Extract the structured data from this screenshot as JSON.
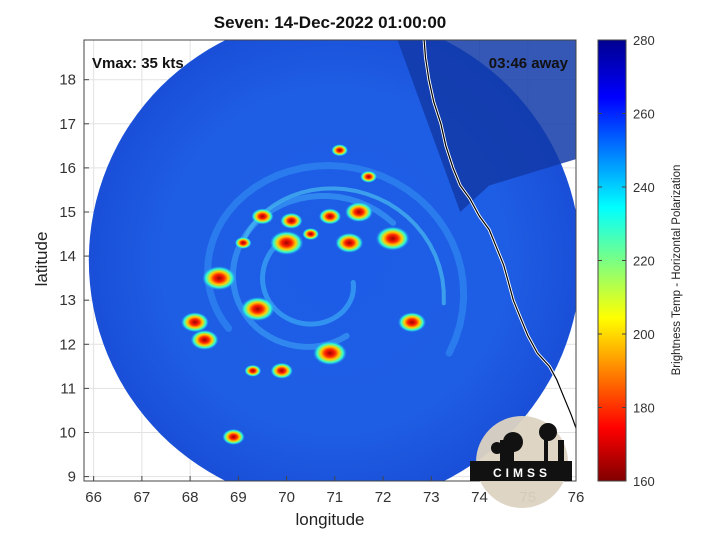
{
  "title": "Seven: 14-Dec-2022 01:00:00",
  "xlabel": "longitude",
  "ylabel": "latitude",
  "annotations": {
    "vmax": "Vmax: 35 kts",
    "time_away": "03:46 away"
  },
  "logo": {
    "text": "CIMSS"
  },
  "colorbar": {
    "label": "Brightness Temp - Horizontal Polarization",
    "range": [
      160,
      280
    ],
    "ticks": [
      "280",
      "260",
      "240",
      "220",
      "200",
      "180",
      "160"
    ],
    "colormap": "jet"
  },
  "map": {
    "xlim": [
      65.8,
      76
    ],
    "ylim": [
      8.9,
      18.9
    ],
    "xticks": [
      "66",
      "67",
      "68",
      "69",
      "70",
      "71",
      "72",
      "73",
      "74",
      "75",
      "76"
    ],
    "yticks": [
      "9",
      "10",
      "11",
      "12",
      "13",
      "14",
      "15",
      "16",
      "17",
      "18"
    ],
    "swath_center": [
      71.0,
      13.9
    ],
    "swath_radius_deg": 5.1,
    "coastline": [
      [
        72.85,
        18.9
      ],
      [
        72.88,
        18.5
      ],
      [
        72.95,
        18.0
      ],
      [
        73.05,
        17.5
      ],
      [
        73.2,
        17.0
      ],
      [
        73.3,
        16.5
      ],
      [
        73.45,
        16.0
      ],
      [
        73.6,
        15.6
      ],
      [
        73.8,
        15.3
      ],
      [
        74.0,
        14.9
      ],
      [
        74.2,
        14.6
      ],
      [
        74.35,
        14.2
      ],
      [
        74.5,
        13.8
      ],
      [
        74.6,
        13.4
      ],
      [
        74.7,
        13.0
      ],
      [
        74.85,
        12.6
      ],
      [
        75.0,
        12.2
      ],
      [
        75.2,
        11.8
      ],
      [
        75.45,
        11.5
      ],
      [
        75.6,
        11.2
      ],
      [
        75.75,
        10.8
      ],
      [
        75.9,
        10.4
      ],
      [
        76.0,
        10.1
      ]
    ],
    "cold_cells": [
      [
        71.7,
        15.8
      ],
      [
        70.1,
        14.8
      ],
      [
        71.3,
        14.3
      ],
      [
        72.2,
        14.4
      ],
      [
        70.5,
        14.5
      ],
      [
        69.5,
        14.9
      ],
      [
        68.3,
        12.1
      ],
      [
        70.9,
        11.8
      ],
      [
        69.3,
        11.4
      ],
      [
        69.9,
        11.4
      ],
      [
        71.5,
        15.0
      ],
      [
        70.0,
        14.3
      ],
      [
        71.1,
        16.4
      ],
      [
        68.9,
        9.9
      ],
      [
        72.6,
        12.5
      ],
      [
        68.6,
        13.5
      ],
      [
        69.1,
        14.3
      ],
      [
        70.9,
        14.9
      ],
      [
        68.1,
        12.5
      ],
      [
        69.4,
        12.8
      ]
    ]
  }
}
